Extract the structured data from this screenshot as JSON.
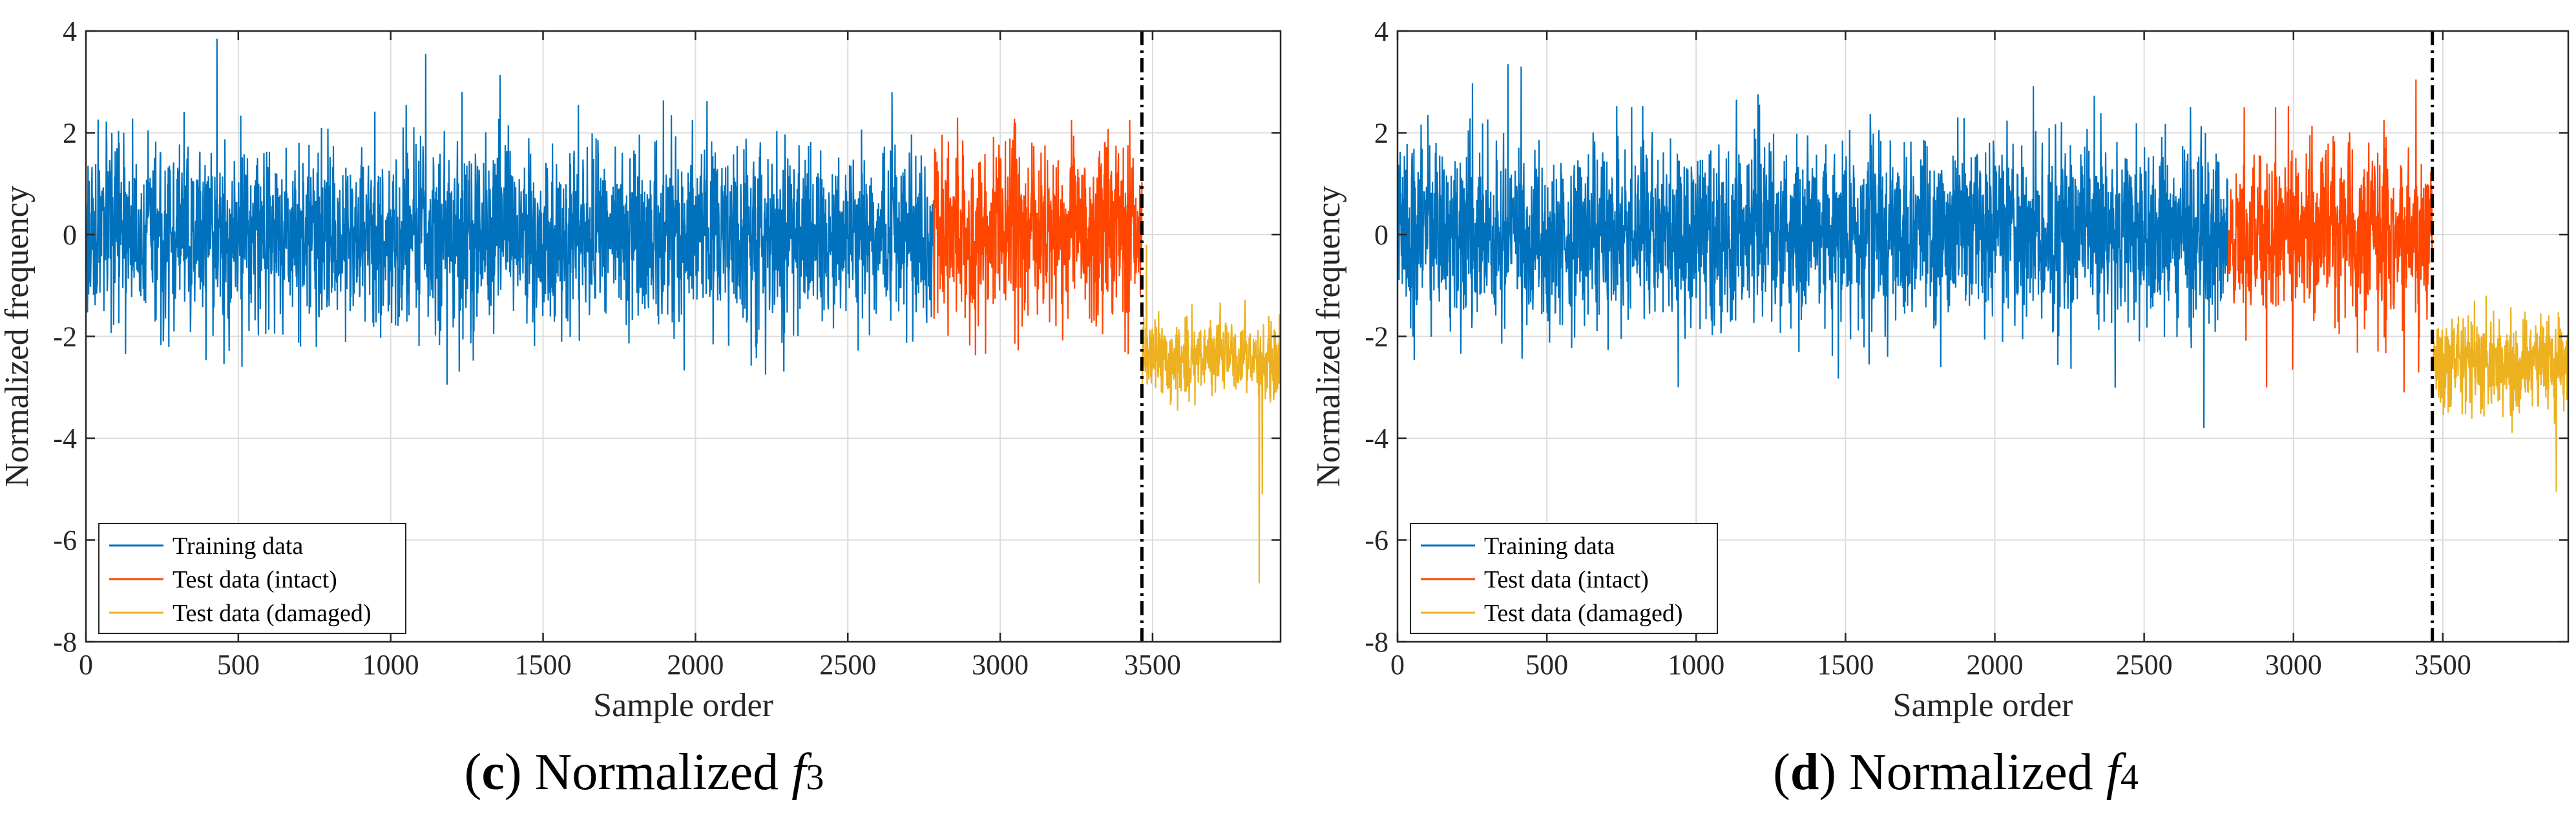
{
  "chart_data": [
    {
      "type": "line",
      "panel_id": "c",
      "caption": {
        "letter": "c",
        "text": "Normalized",
        "symbol": "f",
        "sub": "3"
      },
      "xlabel": "Sample order",
      "ylabel": "Normalized frequency",
      "xlim": [
        0,
        3920
      ],
      "ylim": [
        -8,
        4
      ],
      "xticks": [
        0,
        500,
        1000,
        1500,
        2000,
        2500,
        3000,
        3500
      ],
      "yticks": [
        -8,
        -6,
        -4,
        -2,
        0,
        2,
        4
      ],
      "grid": true,
      "legend_position": "bottom-left",
      "damage_onset": 3465,
      "series": [
        {
          "name": "Training data",
          "color": "#0072BD",
          "x_range": [
            1,
            2780
          ],
          "mean": 0.0,
          "std": 0.85,
          "spikes": [
            [
              430,
              3.85
            ],
            [
              1115,
              3.55
            ],
            [
              1185,
              -2.95
            ],
            [
              2230,
              -2.75
            ]
          ]
        },
        {
          "name": "Test data (intact)",
          "color": "#FF4500",
          "x_range": [
            2781,
            3465
          ],
          "mean": 0.0,
          "std": 0.85,
          "spikes": [
            [
              2860,
              2.3
            ],
            [
              3050,
              2.2
            ],
            [
              3420,
              -2.35
            ]
          ]
        },
        {
          "name": "Test data (damaged)",
          "color": "#EDB120",
          "x_range": [
            3466,
            3920
          ],
          "mean": -2.4,
          "std": 0.4,
          "spikes": [
            [
              3480,
              -0.2
            ],
            [
              3850,
              -6.85
            ],
            [
              3860,
              -5.1
            ]
          ]
        }
      ]
    },
    {
      "type": "line",
      "panel_id": "d",
      "caption": {
        "letter": "d",
        "text": "Normalized",
        "symbol": "f",
        "sub": "4"
      },
      "xlabel": "Sample order",
      "ylabel": "Normalized frequency",
      "xlim": [
        0,
        3920
      ],
      "ylim": [
        -8,
        4
      ],
      "xticks": [
        0,
        500,
        1000,
        1500,
        2000,
        2500,
        3000,
        3500
      ],
      "yticks": [
        -8,
        -6,
        -4,
        -2,
        0,
        2,
        4
      ],
      "grid": true,
      "legend_position": "bottom-left",
      "damage_onset": 3465,
      "series": [
        {
          "name": "Training data",
          "color": "#0072BD",
          "x_range": [
            1,
            2780
          ],
          "mean": 0.0,
          "std": 0.9,
          "spikes": [
            [
              370,
              3.35
            ],
            [
              1135,
              2.65
            ],
            [
              2700,
              -3.8
            ],
            [
              940,
              -3.0
            ]
          ]
        },
        {
          "name": "Test data (intact)",
          "color": "#FF4500",
          "x_range": [
            2781,
            3465
          ],
          "mean": 0.0,
          "std": 0.85,
          "spikes": [
            [
              2835,
              2.5
            ],
            [
              2940,
              2.5
            ],
            [
              2910,
              -3.0
            ],
            [
              3370,
              -3.1
            ]
          ]
        },
        {
          "name": "Test data (damaged)",
          "color": "#EDB120",
          "x_range": [
            3466,
            3920
          ],
          "mean": -2.5,
          "std": 0.45,
          "spikes": [
            [
              3645,
              -1.2
            ],
            [
              3880,
              -5.05
            ]
          ]
        }
      ]
    }
  ]
}
